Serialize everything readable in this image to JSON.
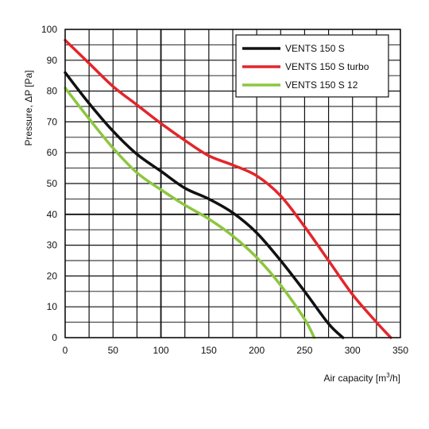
{
  "chart_data": {
    "type": "line",
    "xlabel": "Air capacity [m",
    "xlabel_sup": "3",
    "xlabel_end": "/h]",
    "ylabel": "Pressure, ΔP [Pa]",
    "xlim": [
      0,
      350
    ],
    "ylim": [
      0,
      100
    ],
    "x_ticks": [
      0,
      50,
      100,
      150,
      200,
      250,
      300,
      350
    ],
    "y_ticks": [
      0,
      10,
      20,
      30,
      40,
      50,
      60,
      70,
      80,
      90,
      100
    ],
    "grid": true,
    "legend_position": "top-right",
    "series": [
      {
        "name": "VENTS 150 S",
        "color": "#111111",
        "points": [
          [
            0,
            86
          ],
          [
            25,
            76
          ],
          [
            50,
            67
          ],
          [
            75,
            59.5
          ],
          [
            100,
            54
          ],
          [
            125,
            48.5
          ],
          [
            150,
            45
          ],
          [
            175,
            40.5
          ],
          [
            200,
            34
          ],
          [
            225,
            25
          ],
          [
            250,
            15
          ],
          [
            275,
            4.5
          ],
          [
            290,
            0
          ]
        ]
      },
      {
        "name": "VENTS 150 S turbo",
        "color": "#e3262b",
        "points": [
          [
            0,
            96.5
          ],
          [
            25,
            89
          ],
          [
            50,
            81.5
          ],
          [
            75,
            75.5
          ],
          [
            100,
            69.5
          ],
          [
            125,
            64
          ],
          [
            150,
            59
          ],
          [
            175,
            56
          ],
          [
            200,
            52.5
          ],
          [
            225,
            46
          ],
          [
            250,
            36
          ],
          [
            275,
            25
          ],
          [
            300,
            14
          ],
          [
            325,
            5
          ],
          [
            340,
            0
          ]
        ]
      },
      {
        "name": "VENTS 150 S 12",
        "color": "#8dc63f",
        "points": [
          [
            0,
            81
          ],
          [
            25,
            71
          ],
          [
            50,
            61.5
          ],
          [
            75,
            53.5
          ],
          [
            100,
            48
          ],
          [
            125,
            43
          ],
          [
            150,
            38.5
          ],
          [
            175,
            33
          ],
          [
            200,
            26
          ],
          [
            225,
            17
          ],
          [
            250,
            6
          ],
          [
            260,
            0
          ]
        ]
      }
    ]
  }
}
